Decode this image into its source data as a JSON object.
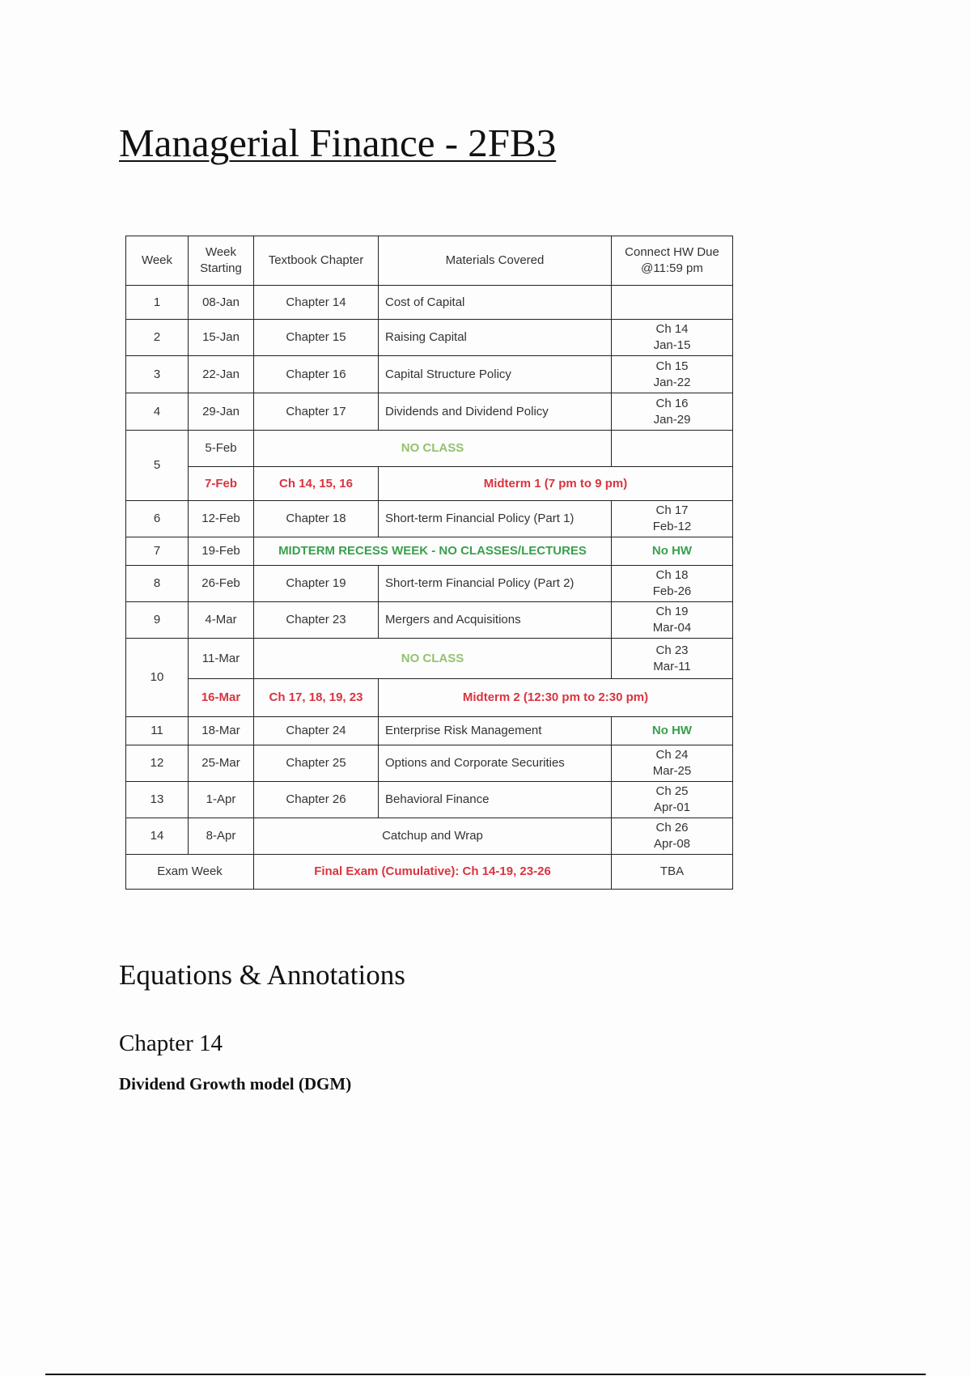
{
  "title": "Managerial Finance - 2FB3",
  "colors": {
    "highlight_red": "#d9343f",
    "highlight_green": "#3a9f4c",
    "no_class_green": "#93c26f"
  },
  "schedule": {
    "headers": [
      "Week",
      "Week Starting",
      "Textbook Chapter",
      "Materials Covered",
      "Connect HW Due @11:59 pm"
    ],
    "rows": [
      {
        "week": "1",
        "date": "08-Jan",
        "chapter": "Chapter 14",
        "material": "Cost of Capital",
        "hw": ""
      },
      {
        "week": "2",
        "date": "15-Jan",
        "chapter": "Chapter 15",
        "material": "Raising Capital",
        "hw": "Ch 14",
        "hw_date": "Jan-15"
      },
      {
        "week": "3",
        "date": "22-Jan",
        "chapter": "Chapter 16",
        "material": "Capital Structure Policy",
        "hw": "Ch 15",
        "hw_date": "Jan-22"
      },
      {
        "week": "4",
        "date": "29-Jan",
        "chapter": "Chapter 17",
        "material": "Dividends and Dividend Policy",
        "hw": "Ch 16",
        "hw_date": "Jan-29"
      },
      {
        "week": "5",
        "date": "5-Feb",
        "note": "NO CLASS",
        "date2": "7-Feb",
        "chapter2": "Ch 14, 15, 16",
        "note2": "Midterm 1 (7 pm to 9 pm)"
      },
      {
        "week": "6",
        "date": "12-Feb",
        "chapter": "Chapter 18",
        "material": "Short-term Financial Policy (Part 1)",
        "hw": "Ch 17",
        "hw_date": "Feb-12"
      },
      {
        "week": "7",
        "date": "19-Feb",
        "note": "MIDTERM RECESS WEEK - NO CLASSES/LECTURES",
        "hw": "No HW"
      },
      {
        "week": "8",
        "date": "26-Feb",
        "chapter": "Chapter 19",
        "material": "Short-term Financial Policy (Part 2)",
        "hw": "Ch 18",
        "hw_date": "Feb-26"
      },
      {
        "week": "9",
        "date": "4-Mar",
        "chapter": "Chapter 23",
        "material": "Mergers and Acquisitions",
        "hw": "Ch 19",
        "hw_date": "Mar-04"
      },
      {
        "week": "10",
        "date": "11-Mar",
        "note": "NO CLASS",
        "hw": "Ch 23",
        "hw_date": "Mar-11",
        "date2": "16-Mar",
        "chapter2": "Ch 17, 18, 19, 23",
        "note2": "Midterm 2 (12:30 pm to 2:30 pm)"
      },
      {
        "week": "11",
        "date": "18-Mar",
        "chapter": "Chapter 24",
        "material": "Enterprise Risk Management",
        "hw": "No HW"
      },
      {
        "week": "12",
        "date": "25-Mar",
        "chapter": "Chapter 25",
        "material": "Options and Corporate Securities",
        "hw": "Ch 24",
        "hw_date": "Mar-25"
      },
      {
        "week": "13",
        "date": "1-Apr",
        "chapter": "Chapter 26",
        "material": "Behavioral Finance",
        "hw": "Ch 25",
        "hw_date": "Apr-01"
      },
      {
        "week": "14",
        "date": "8-Apr",
        "material": "Catchup and Wrap",
        "hw": "Ch 26",
        "hw_date": "Apr-08"
      }
    ],
    "exam": {
      "label": "Exam Week",
      "note": "Final Exam (Cumulative): Ch 14-19, 23-26",
      "hw": "TBA"
    }
  },
  "sections": {
    "equations_heading": "Equations & Annotations",
    "chapter_heading": "Chapter 14",
    "subheading": "Dividend Growth model (DGM)"
  }
}
